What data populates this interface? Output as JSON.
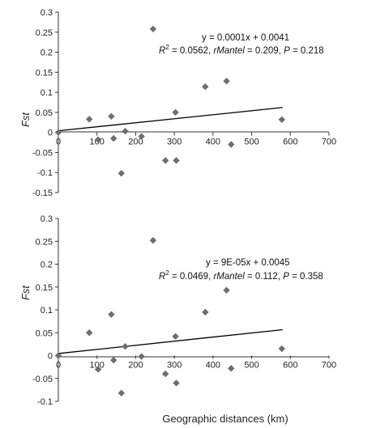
{
  "xlabel": "Geographic distances (km)",
  "chart_data": [
    {
      "type": "scatter",
      "ylabel": "Fst",
      "xlim": [
        0,
        700
      ],
      "ylim": [
        -0.15,
        0.3
      ],
      "xticks": [
        0,
        100,
        200,
        300,
        400,
        500,
        600,
        700
      ],
      "xtick_labels": [
        "0",
        "100",
        "200",
        "300",
        "400",
        "500",
        "600",
        "700"
      ],
      "yticks": [
        -0.15,
        -0.1,
        -0.05,
        0,
        0.05,
        0.1,
        0.15,
        0.2,
        0.25,
        0.3
      ],
      "ytick_labels": [
        "-0.15",
        "-0.1",
        "-0.05",
        "0",
        "0.05",
        "0.1",
        "0.15",
        "0.2",
        "0.25",
        "0.3"
      ],
      "points": [
        {
          "x": 0,
          "y": 0.0
        },
        {
          "x": 80,
          "y": 0.033
        },
        {
          "x": 103,
          "y": -0.018
        },
        {
          "x": 137,
          "y": 0.04
        },
        {
          "x": 143,
          "y": -0.015
        },
        {
          "x": 163,
          "y": -0.102
        },
        {
          "x": 173,
          "y": 0.003
        },
        {
          "x": 215,
          "y": -0.01
        },
        {
          "x": 245,
          "y": 0.258
        },
        {
          "x": 277,
          "y": -0.07
        },
        {
          "x": 303,
          "y": 0.05
        },
        {
          "x": 305,
          "y": -0.07
        },
        {
          "x": 380,
          "y": 0.114
        },
        {
          "x": 435,
          "y": 0.128
        },
        {
          "x": 447,
          "y": -0.03
        },
        {
          "x": 578,
          "y": 0.032
        }
      ],
      "trendline": {
        "slope": 0.0001,
        "intercept": 0.0041,
        "x_range": [
          0,
          580
        ]
      },
      "equation": "y = 0.0001x + 0.0041",
      "stats": {
        "r2_label": "R",
        "r2_sup": "2",
        "r2_value": " = 0.0562, ",
        "rmantel_label": "rMantel",
        "rmantel_value": " = 0.209, ",
        "p_label": "P",
        "p_value": " = 0.218"
      }
    },
    {
      "type": "scatter",
      "ylabel": "Fst",
      "xlim": [
        0,
        700
      ],
      "ylim": [
        -0.1,
        0.3
      ],
      "xticks": [
        0,
        100,
        200,
        300,
        400,
        500,
        600,
        700
      ],
      "xtick_labels": [
        "0",
        "100",
        "200",
        "300",
        "400",
        "500",
        "600",
        "700"
      ],
      "yticks": [
        -0.1,
        -0.05,
        0,
        0.05,
        0.1,
        0.15,
        0.2,
        0.25,
        0.3
      ],
      "ytick_labels": [
        "-0.1",
        "-0.05",
        "0",
        "0.05",
        "0.1",
        "0.15",
        "0.2",
        "0.25",
        "0.3"
      ],
      "points": [
        {
          "x": 0,
          "y": 0.0
        },
        {
          "x": 80,
          "y": 0.05
        },
        {
          "x": 103,
          "y": -0.03
        },
        {
          "x": 137,
          "y": 0.09
        },
        {
          "x": 143,
          "y": -0.01
        },
        {
          "x": 163,
          "y": -0.082
        },
        {
          "x": 173,
          "y": 0.02
        },
        {
          "x": 215,
          "y": -0.002
        },
        {
          "x": 245,
          "y": 0.252
        },
        {
          "x": 277,
          "y": -0.04
        },
        {
          "x": 303,
          "y": 0.042
        },
        {
          "x": 305,
          "y": -0.06
        },
        {
          "x": 380,
          "y": 0.095
        },
        {
          "x": 435,
          "y": 0.143
        },
        {
          "x": 447,
          "y": -0.028
        },
        {
          "x": 578,
          "y": 0.015
        }
      ],
      "trendline": {
        "slope": 9e-05,
        "intercept": 0.0045,
        "x_range": [
          0,
          580
        ]
      },
      "equation": "y = 9E-05x + 0.0045",
      "stats": {
        "r2_label": "R",
        "r2_sup": "2",
        "r2_value": " = 0.0469, ",
        "rmantel_label": "rMantel",
        "rmantel_value": " = 0.112, ",
        "p_label": "P",
        "p_value": " = 0.358"
      }
    }
  ]
}
